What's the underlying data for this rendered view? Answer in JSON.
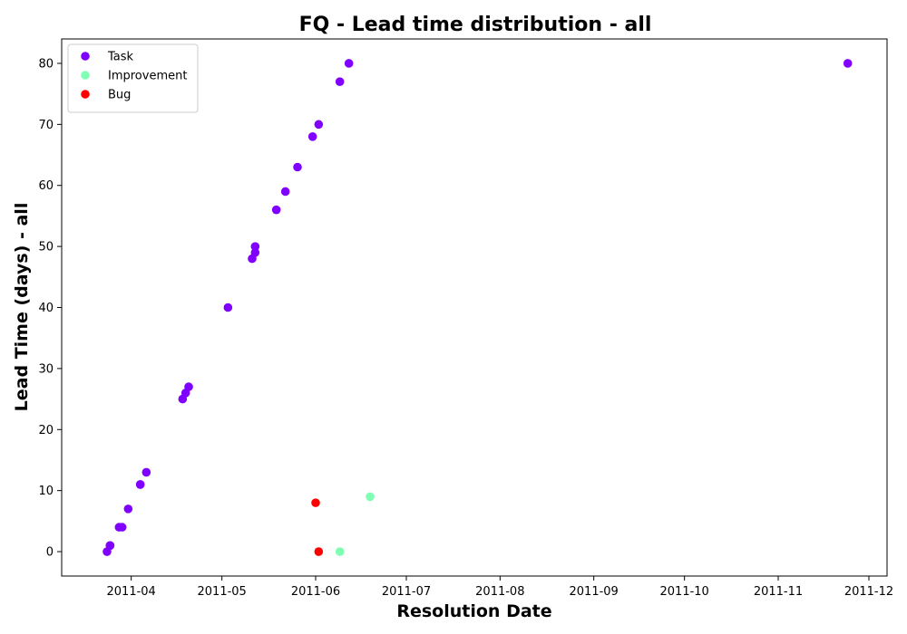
{
  "chart_data": {
    "type": "scatter",
    "title": "FQ - Lead time distribution - all",
    "xlabel": "Resolution Date",
    "ylabel": "Lead Time (days) - all",
    "x_axis": {
      "kind": "date",
      "range": [
        "2011-03-09",
        "2011-12-07"
      ],
      "ticks": [
        "2011-04-01",
        "2011-05-01",
        "2011-06-01",
        "2011-07-01",
        "2011-08-01",
        "2011-09-01",
        "2011-10-01",
        "2011-11-01",
        "2011-12-01"
      ],
      "tick_labels": [
        "2011-04",
        "2011-05",
        "2011-06",
        "2011-07",
        "2011-08",
        "2011-09",
        "2011-10",
        "2011-11",
        "2011-12"
      ]
    },
    "y_axis": {
      "range": [
        -4,
        84
      ],
      "ticks": [
        0,
        10,
        20,
        30,
        40,
        50,
        60,
        70,
        80
      ],
      "tick_labels": [
        "0",
        "10",
        "20",
        "30",
        "40",
        "50",
        "60",
        "70",
        "80"
      ]
    },
    "grid": false,
    "legend": {
      "placement": "top-left"
    },
    "series": [
      {
        "name": "Task",
        "color": "#8000ff",
        "points": [
          {
            "x": "2011-03-24",
            "y": 0
          },
          {
            "x": "2011-03-25",
            "y": 1
          },
          {
            "x": "2011-03-25",
            "y": 1
          },
          {
            "x": "2011-03-28",
            "y": 4
          },
          {
            "x": "2011-03-29",
            "y": 4
          },
          {
            "x": "2011-03-31",
            "y": 7
          },
          {
            "x": "2011-04-04",
            "y": 11
          },
          {
            "x": "2011-04-04",
            "y": 11
          },
          {
            "x": "2011-04-06",
            "y": 13
          },
          {
            "x": "2011-04-18",
            "y": 25
          },
          {
            "x": "2011-04-19",
            "y": 26
          },
          {
            "x": "2011-04-20",
            "y": 27
          },
          {
            "x": "2011-05-03",
            "y": 40
          },
          {
            "x": "2011-05-11",
            "y": 48
          },
          {
            "x": "2011-05-12",
            "y": 49
          },
          {
            "x": "2011-05-12",
            "y": 50
          },
          {
            "x": "2011-05-19",
            "y": 56
          },
          {
            "x": "2011-05-22",
            "y": 59
          },
          {
            "x": "2011-05-26",
            "y": 63
          },
          {
            "x": "2011-05-31",
            "y": 68
          },
          {
            "x": "2011-06-02",
            "y": 70
          },
          {
            "x": "2011-06-09",
            "y": 77
          },
          {
            "x": "2011-06-12",
            "y": 80
          },
          {
            "x": "2011-11-24",
            "y": 80
          }
        ]
      },
      {
        "name": "Improvement",
        "color": "#80ffb4",
        "points": [
          {
            "x": "2011-06-09",
            "y": 0
          },
          {
            "x": "2011-06-19",
            "y": 9
          }
        ]
      },
      {
        "name": "Bug",
        "color": "#ff0000",
        "points": [
          {
            "x": "2011-06-01",
            "y": 8
          },
          {
            "x": "2011-06-02",
            "y": 0
          }
        ]
      }
    ]
  }
}
